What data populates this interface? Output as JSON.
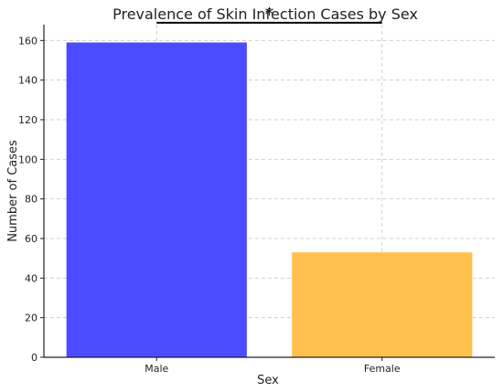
{
  "chart_data": {
    "type": "bar",
    "title": "Prevalence of Skin Infection Cases by Sex",
    "xlabel": "Sex",
    "ylabel": "Number of Cases",
    "categories": [
      "Male",
      "Female"
    ],
    "values": [
      159,
      53
    ],
    "colors": [
      "#4b4bff",
      "#ffc04d"
    ],
    "ylim": [
      0,
      168
    ],
    "yticks": [
      0,
      20,
      40,
      60,
      80,
      100,
      120,
      140,
      160
    ],
    "grid": true,
    "significance": {
      "label": "*",
      "between": [
        "Male",
        "Female"
      ],
      "y": 169
    }
  }
}
